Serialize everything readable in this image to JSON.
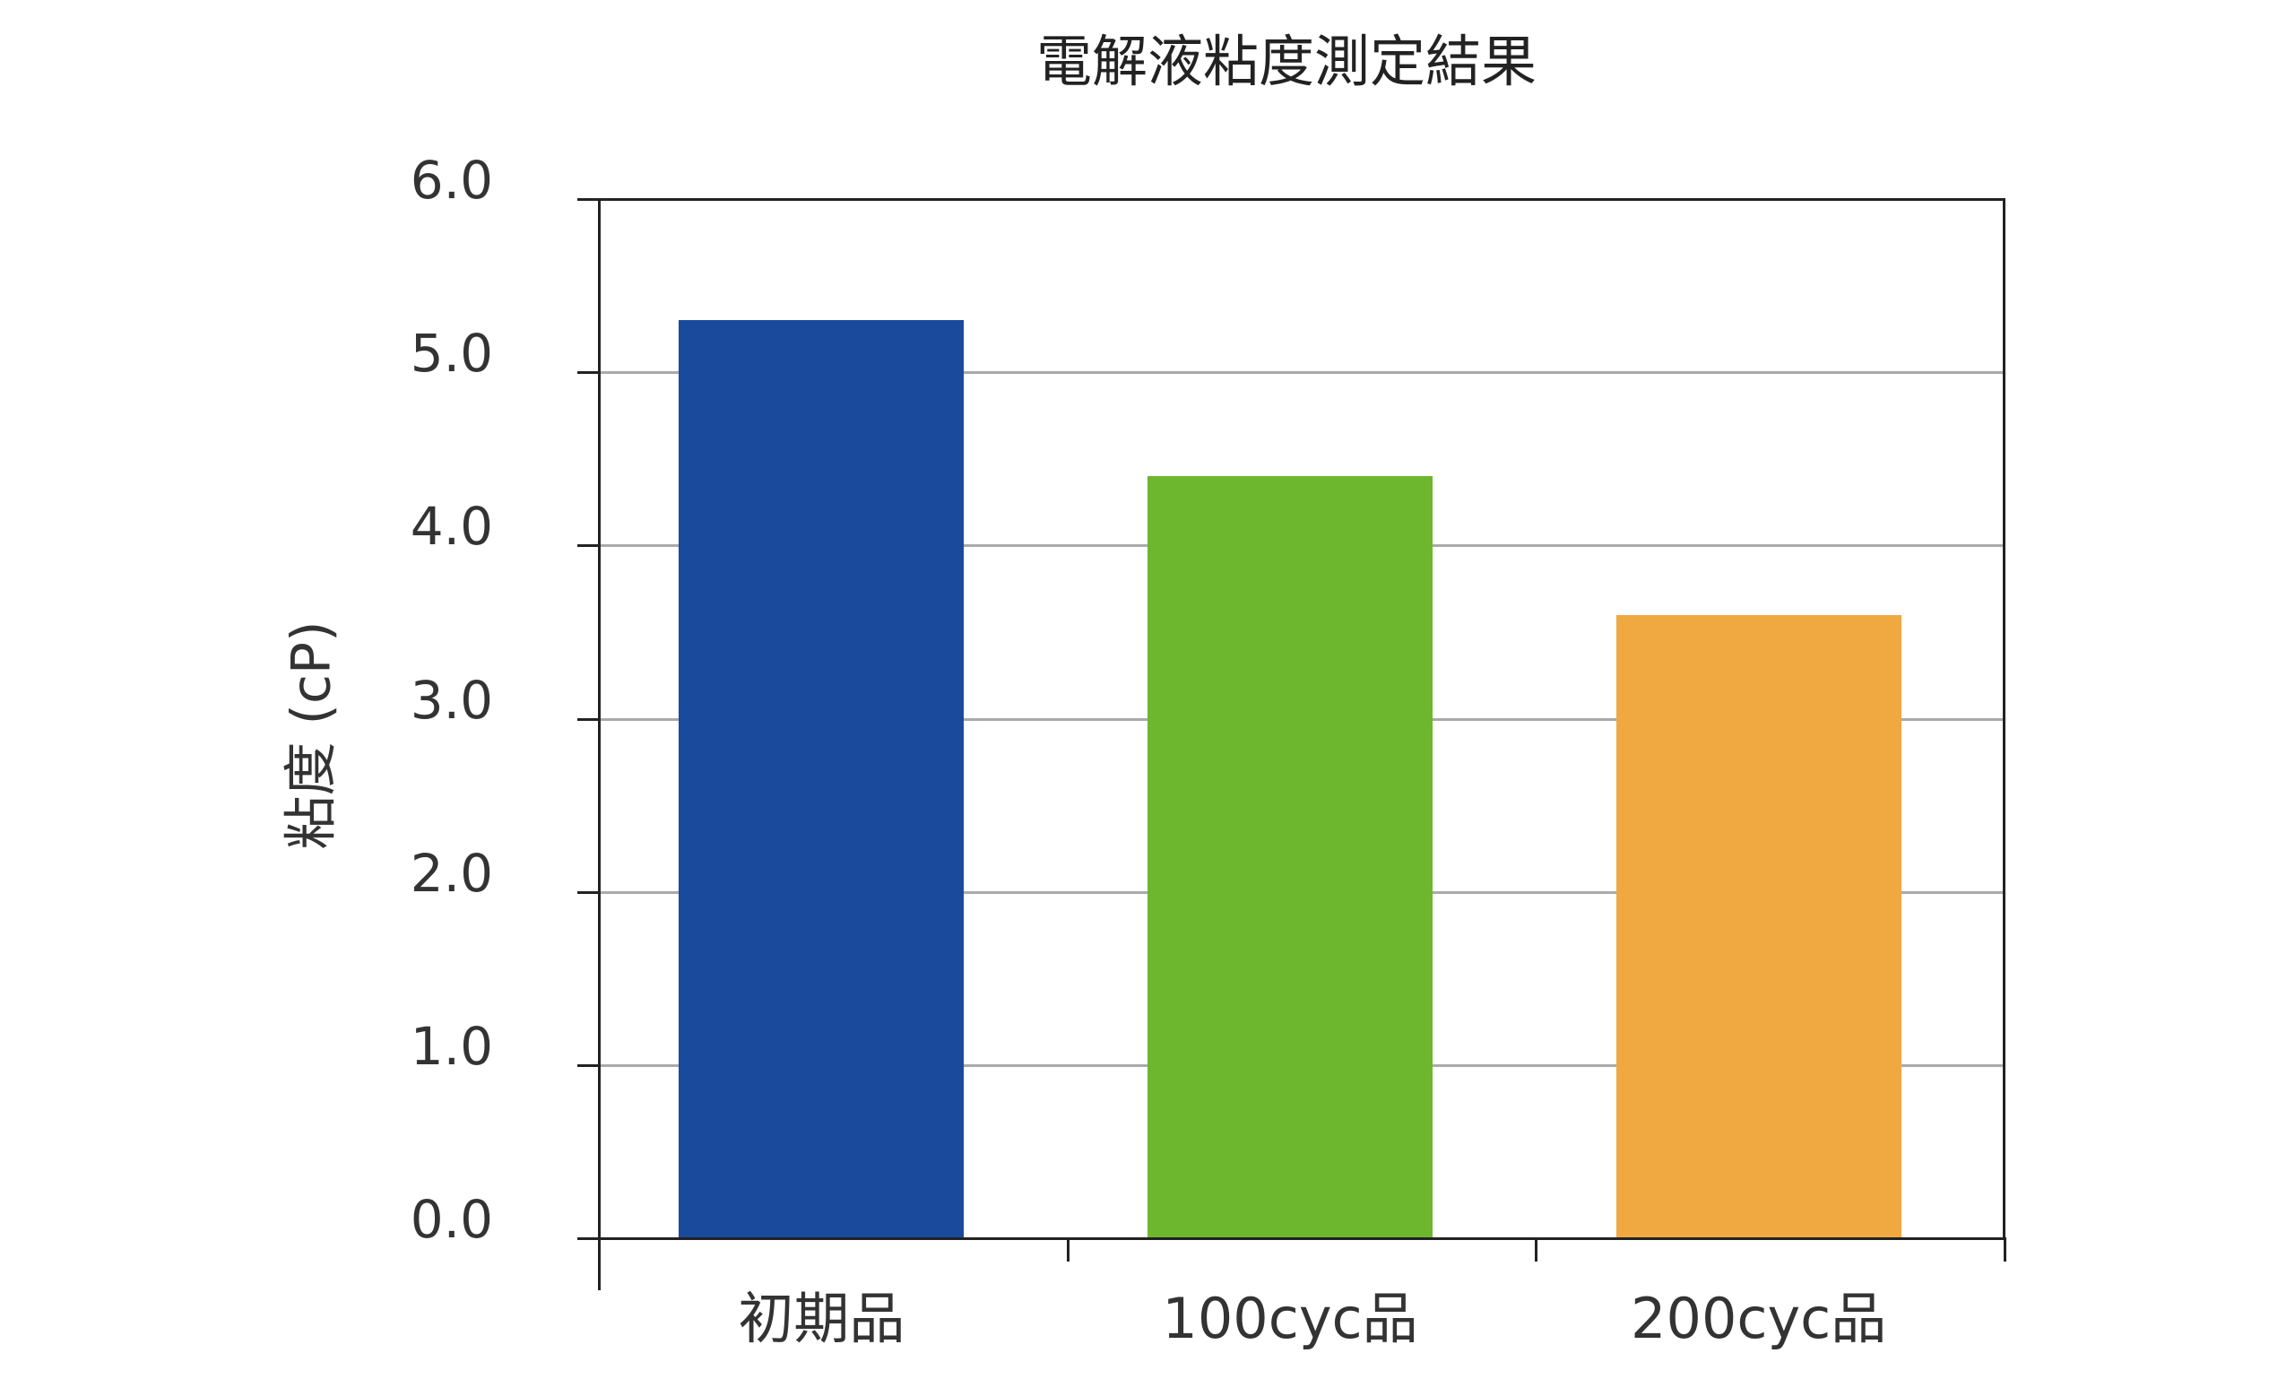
{
  "chart_data": {
    "type": "bar",
    "title": "電解液粘度測定結果",
    "xlabel": "",
    "ylabel": "粘度 (cP)",
    "categories": [
      "初期品",
      "100cyc品",
      "200cyc品"
    ],
    "values": [
      5.3,
      4.4,
      3.6
    ],
    "colors": [
      "#1a4a9b",
      "#6db72f",
      "#f0a940"
    ],
    "ylim": [
      0,
      6.0
    ],
    "yticks": [
      "0.0",
      "1.0",
      "2.0",
      "3.0",
      "4.0",
      "5.0",
      "6.0"
    ],
    "grid": true,
    "legend": null
  }
}
